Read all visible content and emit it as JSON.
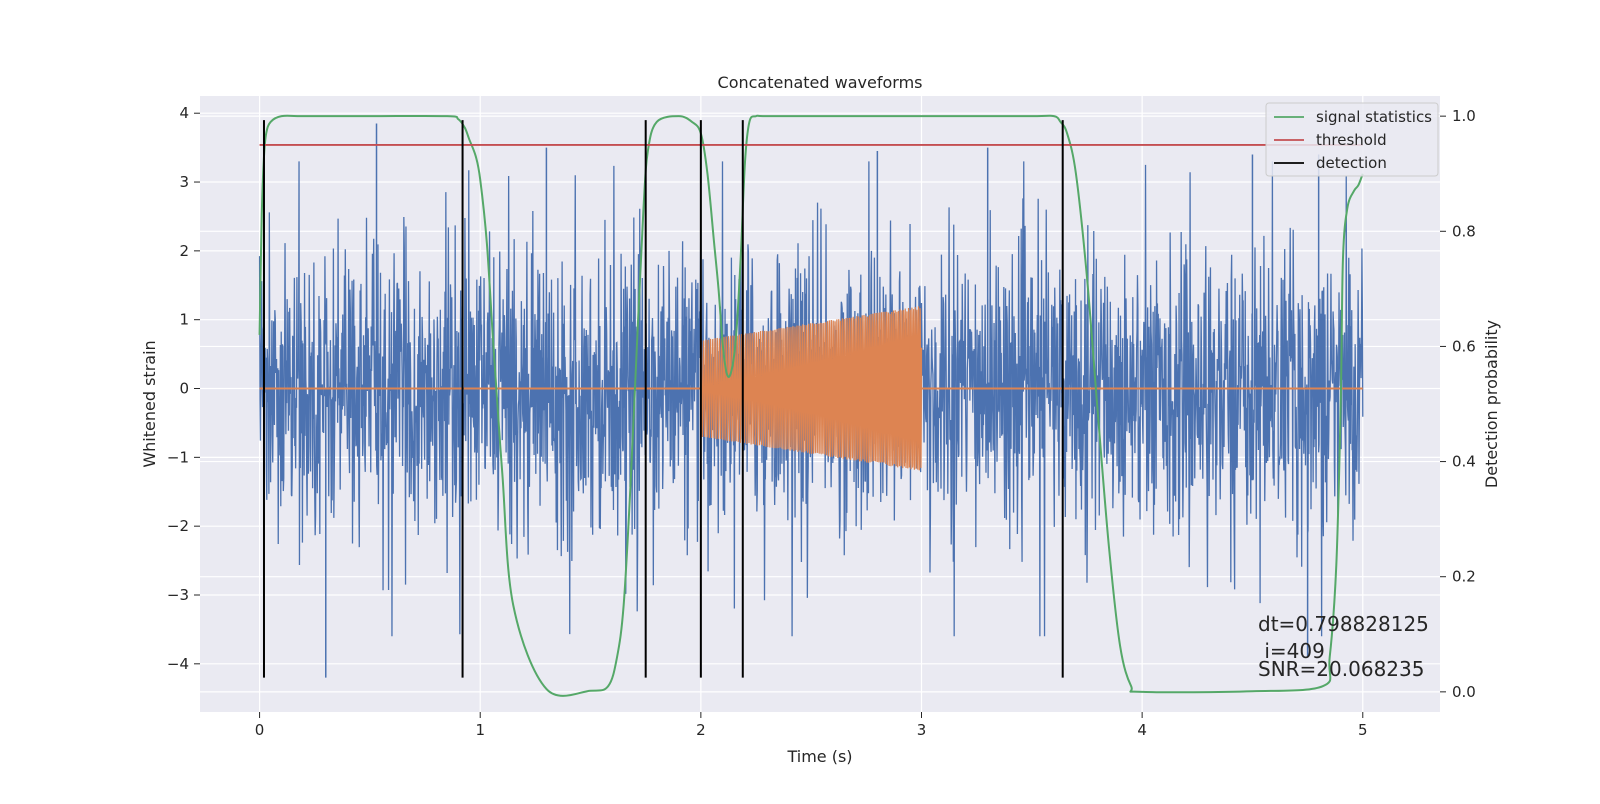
{
  "chart_data": {
    "type": "line",
    "title": "Concatenated waveforms",
    "xlabel": "Time (s)",
    "ylabel_left": "Whitened strain",
    "ylabel_right": "Detection probability",
    "xlim": [
      -0.27,
      5.35
    ],
    "ylim_left": [
      -4.7,
      4.25
    ],
    "ylim_right": [
      -0.035,
      1.035
    ],
    "x_ticks": [
      0,
      1,
      2,
      3,
      4,
      5
    ],
    "y_left_ticks": [
      -4,
      -3,
      -2,
      -1,
      0,
      1,
      2,
      3,
      4
    ],
    "y_right_ticks": [
      0.0,
      0.2,
      0.4,
      0.6,
      0.8,
      1.0
    ],
    "grid": true,
    "legend_position": "upper right",
    "colors": {
      "strain": "#4c72b0",
      "template": "#dd8452",
      "signal_statistics": "#55a868",
      "threshold": "#c44e52",
      "detection": "#000000",
      "background": "#eaeaf2",
      "grid": "#ffffff"
    },
    "legend": [
      {
        "label": "signal statistics",
        "color": "#55a868"
      },
      {
        "label": "threshold",
        "color": "#c44e52"
      },
      {
        "label": "detection",
        "color": "#000000"
      }
    ],
    "series": [
      {
        "axis": "right",
        "style": "line",
        "x": [
          0.0,
          0.01,
          0.02,
          0.03,
          0.05,
          0.1,
          0.2,
          0.5,
          0.85,
          0.9,
          0.93,
          0.95,
          0.98,
          1.0,
          1.03,
          1.06,
          1.1,
          1.15,
          1.3,
          1.5,
          1.58,
          1.62,
          1.65,
          1.68,
          1.71,
          1.74,
          1.76,
          1.8,
          1.9,
          1.96,
          2.0,
          2.03,
          2.06,
          2.08,
          2.1,
          2.12,
          2.14,
          2.16,
          2.18,
          2.2,
          2.22,
          2.25,
          2.3,
          2.6,
          3.0,
          3.5,
          3.6,
          3.63,
          3.66,
          3.7,
          3.75,
          3.8,
          3.85,
          3.9,
          3.95,
          4.0,
          4.5,
          4.82,
          4.85,
          4.88,
          4.9,
          4.91,
          4.93,
          4.96,
          4.98,
          5.0
        ],
        "values": [
          0.62,
          0.83,
          0.93,
          0.97,
          0.99,
          1.0,
          1.0,
          1.0,
          1.0,
          0.995,
          0.98,
          0.96,
          0.93,
          0.89,
          0.78,
          0.6,
          0.38,
          0.15,
          0.005,
          0.002,
          0.01,
          0.06,
          0.15,
          0.35,
          0.6,
          0.84,
          0.94,
          0.99,
          1.0,
          0.99,
          0.97,
          0.9,
          0.78,
          0.7,
          0.6,
          0.55,
          0.56,
          0.62,
          0.75,
          0.92,
          0.99,
          1.0,
          1.0,
          1.0,
          1.0,
          1.0,
          1.0,
          0.99,
          0.97,
          0.9,
          0.72,
          0.48,
          0.25,
          0.08,
          0.01,
          0.0,
          0.001,
          0.01,
          0.06,
          0.22,
          0.5,
          0.75,
          0.84,
          0.87,
          0.88,
          0.9
        ]
      },
      {
        "axis": "right",
        "style": "line",
        "x": [
          0.0,
          5.0
        ],
        "values": [
          0.95,
          0.95
        ]
      },
      {
        "axis": "left",
        "style": "vlines",
        "x": [
          0.02,
          0.92,
          1.75,
          2.0,
          2.19,
          3.64
        ],
        "ymin": -4.2,
        "ymax": 3.9
      }
    ],
    "strain": {
      "x_range": [
        0.0,
        5.0
      ],
      "spikes": [
        {
          "x": 0.3,
          "value": -4.2
        },
        {
          "x": 0.53,
          "value": 3.85
        },
        {
          "x": 1.3,
          "value": 3.5
        },
        {
          "x": 2.8,
          "value": 3.45
        },
        {
          "x": 3.3,
          "value": 3.5
        },
        {
          "x": 4.5,
          "value": 3.4
        },
        {
          "x": 4.75,
          "value": -3.9
        },
        {
          "x": 4.8,
          "value": 3.4
        }
      ]
    },
    "template": {
      "flat_x_range": [
        0.0,
        5.0
      ],
      "chirp_x_range": [
        2.0,
        3.0
      ],
      "amplitude_start": 0.7,
      "amplitude_end": 1.2
    },
    "annotations": [
      {
        "text": "dt=0.798828125"
      },
      {
        "text": " i=409"
      },
      {
        "text": "SNR=20.068235"
      }
    ]
  }
}
